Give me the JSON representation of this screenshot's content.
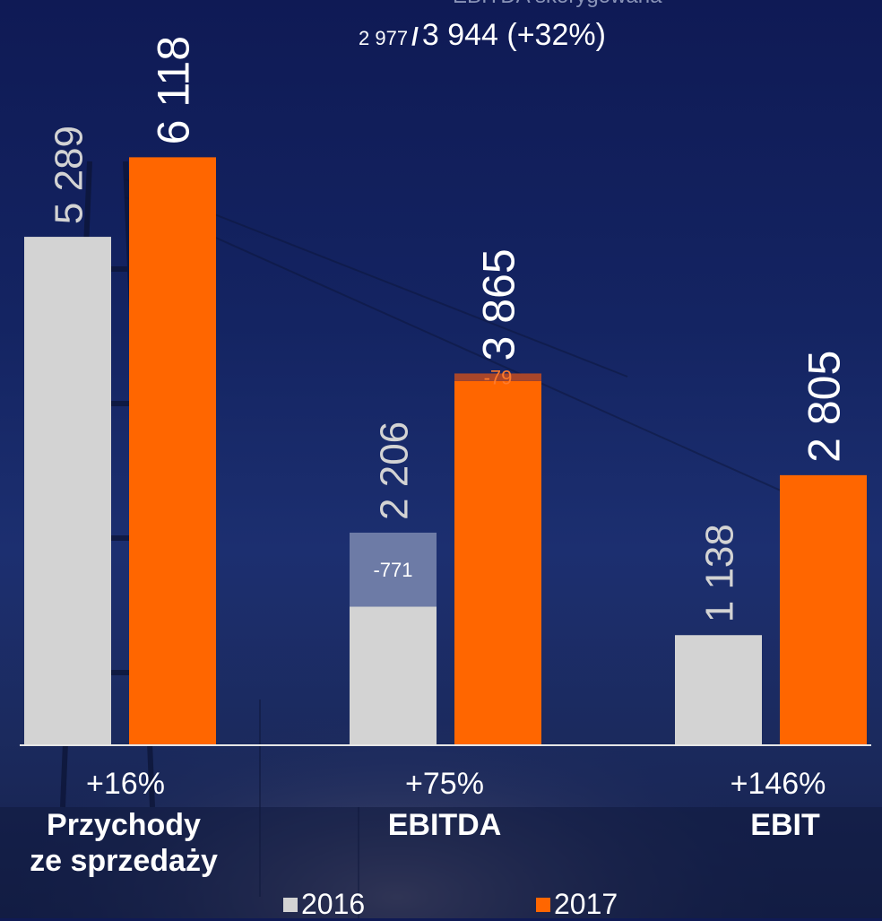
{
  "header": {
    "faded_text": "EBITDA skorygowana",
    "prev_value": "2 977",
    "separator": "/",
    "curr_value": "3 944 (+32%)"
  },
  "colors": {
    "y2016": "#d3d3d3",
    "y2017": "#ff6600",
    "adjust_2016": "#6d7ba6",
    "adjust_2017": "#a9462a",
    "value_label_2016": "#d3d3d3",
    "value_label_2017": "#ffffff"
  },
  "chart_data": {
    "type": "bar",
    "categories": [
      "Przychody ze sprzedaży",
      "EBITDA",
      "EBIT"
    ],
    "series": [
      {
        "name": "2016",
        "values": [
          5289,
          2206,
          1138
        ],
        "labels": [
          "5 289",
          "2 206",
          "1 138"
        ]
      },
      {
        "name": "2017",
        "values": [
          6118,
          3865,
          2805
        ],
        "labels": [
          "6 118",
          "3 865",
          "2 805"
        ]
      }
    ],
    "adjustments": [
      {
        "category": "EBITDA",
        "series": "2016",
        "value": -771,
        "label": "-771"
      },
      {
        "category": "EBITDA",
        "series": "2017",
        "value": -79,
        "label": "-79"
      }
    ],
    "ylim": [
      0,
      6500
    ],
    "grid": false
  },
  "groups": [
    {
      "pct": "+16%",
      "name_lines": [
        "Przychody",
        "ze sprzedaży"
      ]
    },
    {
      "pct": "+75%",
      "name_lines": [
        "EBITDA"
      ]
    },
    {
      "pct": "+146%",
      "name_lines": [
        "EBIT"
      ]
    }
  ],
  "legend": [
    {
      "label": "2016"
    },
    {
      "label": "2017"
    }
  ]
}
